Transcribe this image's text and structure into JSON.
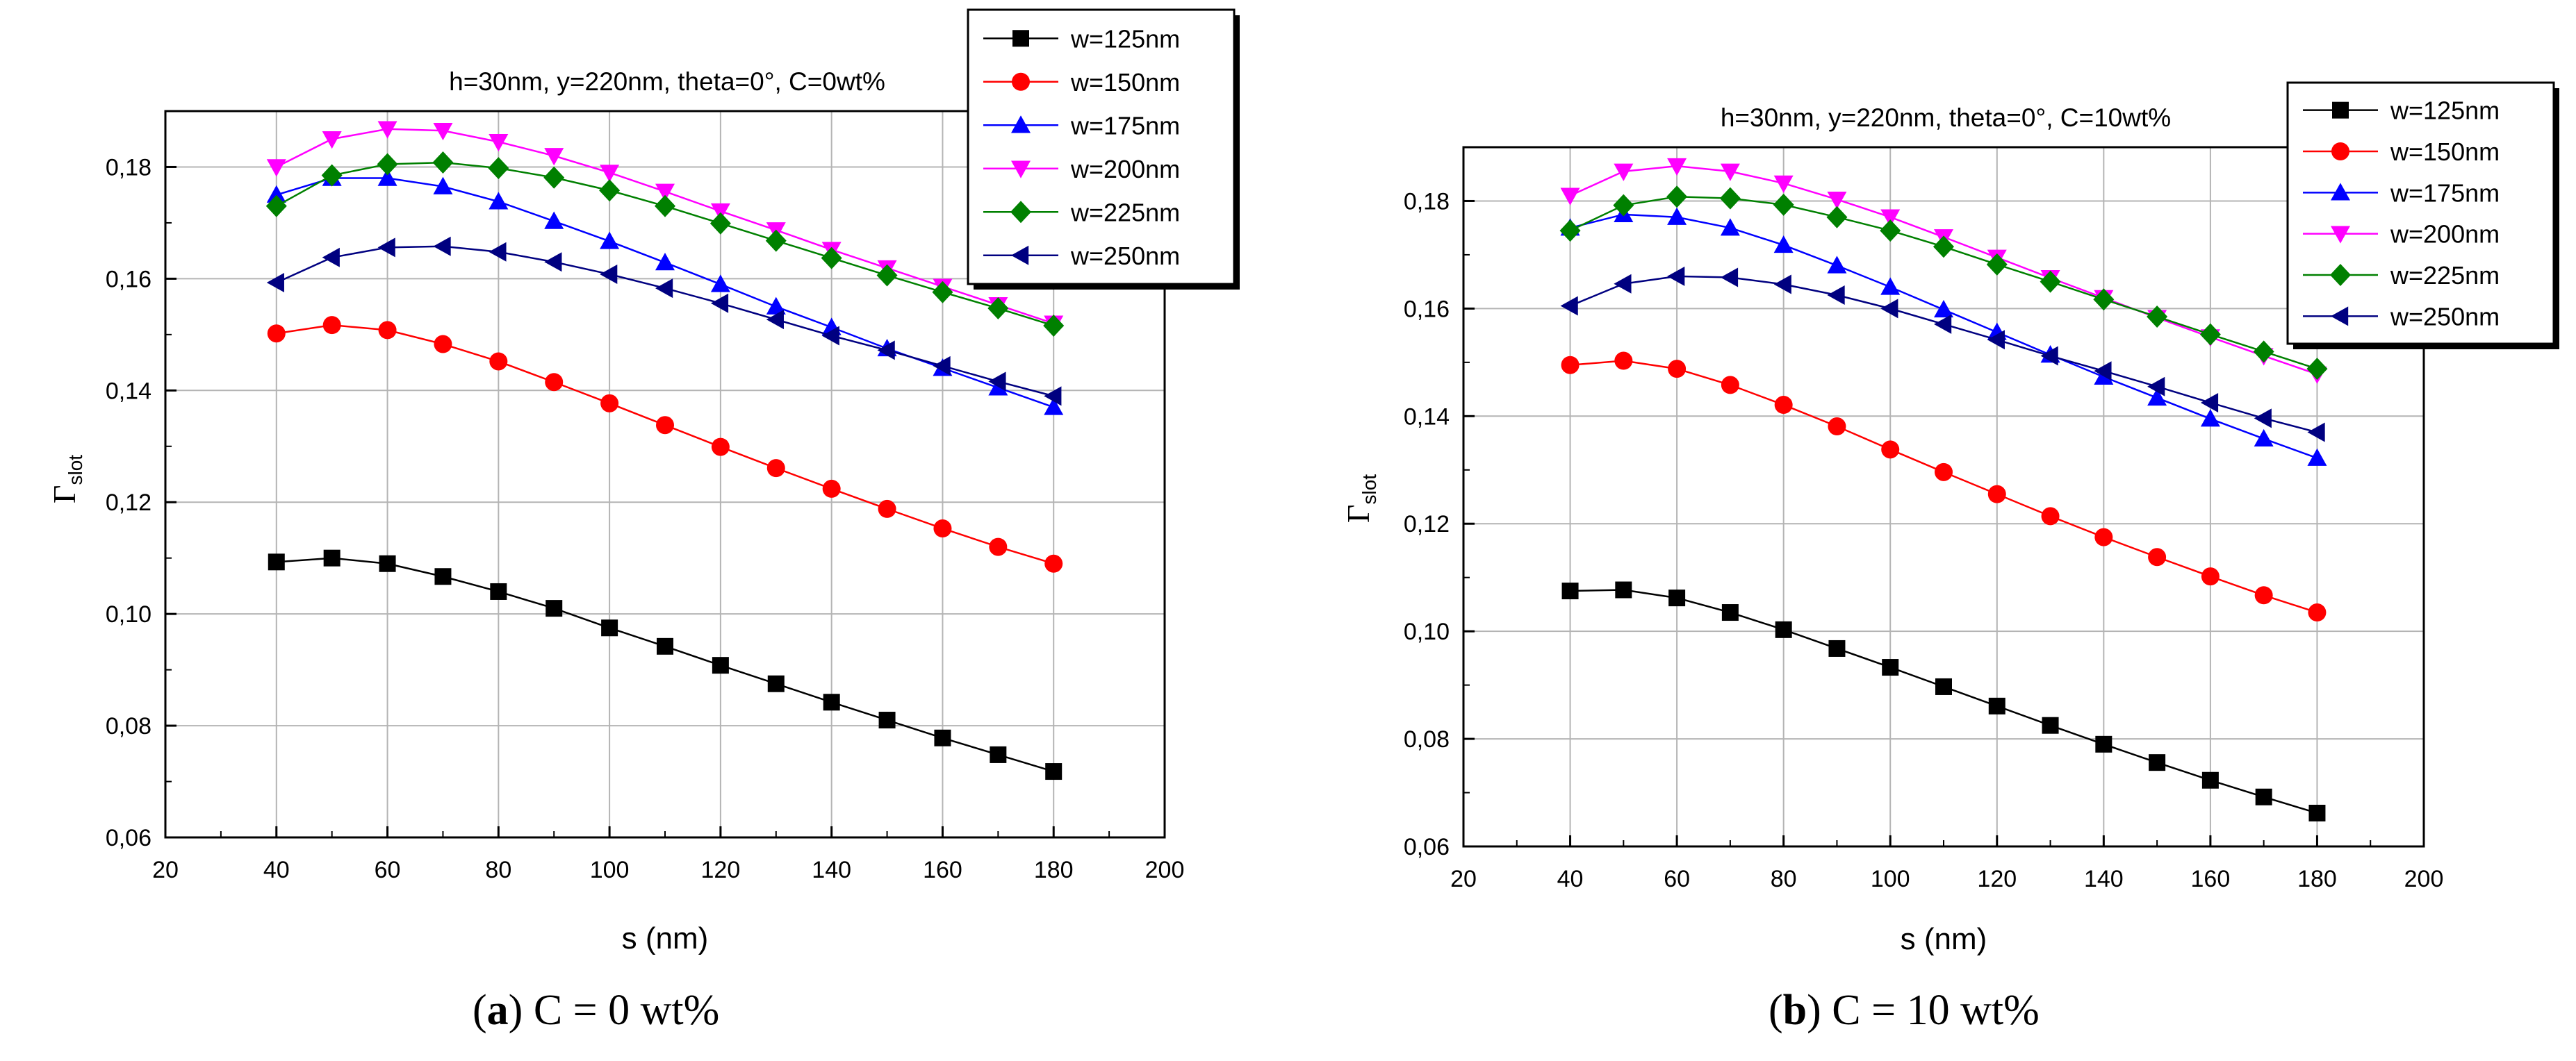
{
  "chart_data": [
    {
      "type": "line",
      "panel": "a",
      "title": "h=30nm, y=220nm, theta=0°, C=0wt%",
      "xlabel": "s (nm)",
      "ylabel": "Γ",
      "ylabel_sub": "slot",
      "xlim": [
        20,
        200
      ],
      "ylim": [
        0.06,
        0.19
      ],
      "xticks": [
        20,
        40,
        60,
        80,
        100,
        120,
        140,
        160,
        180,
        200
      ],
      "xtick_labels": [
        "20",
        "40",
        "60",
        "80",
        "100",
        "120",
        "140",
        "160",
        "180",
        "200"
      ],
      "yticks": [
        0.06,
        0.08,
        0.1,
        0.12,
        0.14,
        0.16,
        0.18
      ],
      "ytick_labels": [
        "0,06",
        "0,08",
        "0,10",
        "0,12",
        "0,14",
        "0,16",
        "0,18"
      ],
      "grid": true,
      "legend_position": "top-right",
      "x": [
        40,
        50,
        60,
        70,
        80,
        90,
        100,
        110,
        120,
        130,
        140,
        150,
        160,
        170,
        180
      ],
      "series": [
        {
          "name": "w=125nm",
          "color": "#000000",
          "marker": "square",
          "values": [
            0.1093,
            0.11,
            0.109,
            0.1067,
            0.104,
            0.101,
            0.0975,
            0.0942,
            0.0908,
            0.0875,
            0.0842,
            0.081,
            0.0778,
            0.0748,
            0.0718
          ]
        },
        {
          "name": "w=150nm",
          "color": "#ff0000",
          "marker": "circle",
          "values": [
            0.1502,
            0.1517,
            0.1508,
            0.1483,
            0.1452,
            0.1415,
            0.1377,
            0.1338,
            0.1299,
            0.1261,
            0.1224,
            0.1188,
            0.1153,
            0.112,
            0.109
          ]
        },
        {
          "name": "w=175nm",
          "color": "#0000ff",
          "marker": "triangle-up",
          "values": [
            0.175,
            0.178,
            0.178,
            0.1765,
            0.1738,
            0.1703,
            0.1667,
            0.1629,
            0.159,
            0.155,
            0.1513,
            0.1475,
            0.144,
            0.1405,
            0.137
          ]
        },
        {
          "name": "w=200nm",
          "color": "#ff00ff",
          "marker": "triangle-down",
          "values": [
            0.18,
            0.185,
            0.1868,
            0.1865,
            0.1845,
            0.182,
            0.179,
            0.1756,
            0.1721,
            0.1687,
            0.1652,
            0.1619,
            0.1586,
            0.1553,
            0.152
          ]
        },
        {
          "name": "w=225nm",
          "color": "#008000",
          "marker": "diamond",
          "values": [
            0.173,
            0.1785,
            0.1805,
            0.1808,
            0.1798,
            0.1781,
            0.1758,
            0.173,
            0.1699,
            0.1668,
            0.1637,
            0.1606,
            0.1576,
            0.1547,
            0.1516
          ]
        },
        {
          "name": "w=250nm",
          "color": "#000080",
          "marker": "triangle-left",
          "values": [
            0.1593,
            0.1638,
            0.1656,
            0.1658,
            0.1648,
            0.163,
            0.1608,
            0.1583,
            0.1556,
            0.1527,
            0.1498,
            0.1472,
            0.1444,
            0.1416,
            0.139
          ]
        }
      ]
    },
    {
      "type": "line",
      "panel": "b",
      "title": "h=30nm, y=220nm, theta=0°, C=10wt%",
      "xlabel": "s (nm)",
      "ylabel": "Γ",
      "ylabel_sub": "slot",
      "xlim": [
        20,
        200
      ],
      "ylim": [
        0.06,
        0.19
      ],
      "xticks": [
        20,
        40,
        60,
        80,
        100,
        120,
        140,
        160,
        180,
        200
      ],
      "xtick_labels": [
        "20",
        "40",
        "60",
        "80",
        "100",
        "120",
        "140",
        "160",
        "180",
        "200"
      ],
      "yticks": [
        0.06,
        0.08,
        0.1,
        0.12,
        0.14,
        0.16,
        0.18
      ],
      "ytick_labels": [
        "0,06",
        "0,08",
        "0,10",
        "0,12",
        "0,14",
        "0,16",
        "0,18"
      ],
      "grid": true,
      "legend_position": "top-right",
      "x": [
        40,
        50,
        60,
        70,
        80,
        90,
        100,
        110,
        120,
        130,
        140,
        150,
        160,
        170,
        180
      ],
      "series": [
        {
          "name": "w=125nm",
          "color": "#000000",
          "marker": "square",
          "values": [
            0.1075,
            0.1077,
            0.1062,
            0.1035,
            0.1003,
            0.0968,
            0.0933,
            0.0897,
            0.0861,
            0.0825,
            0.079,
            0.0756,
            0.0723,
            0.0692,
            0.0662
          ]
        },
        {
          "name": "w=150nm",
          "color": "#ff0000",
          "marker": "circle",
          "values": [
            0.1495,
            0.1503,
            0.1488,
            0.1458,
            0.1421,
            0.1381,
            0.1338,
            0.1296,
            0.1255,
            0.1214,
            0.1175,
            0.1138,
            0.1102,
            0.1067,
            0.1035
          ]
        },
        {
          "name": "w=175nm",
          "color": "#0000ff",
          "marker": "triangle-up",
          "values": [
            0.175,
            0.1775,
            0.177,
            0.175,
            0.1718,
            0.168,
            0.164,
            0.1598,
            0.1556,
            0.1514,
            0.1473,
            0.1434,
            0.1395,
            0.1358,
            0.1322
          ]
        },
        {
          "name": "w=200nm",
          "color": "#ff00ff",
          "marker": "triangle-down",
          "values": [
            0.181,
            0.1855,
            0.1865,
            0.1855,
            0.1833,
            0.1803,
            0.177,
            0.1733,
            0.1695,
            0.1657,
            0.162,
            0.1583,
            0.1547,
            0.1512,
            0.1478
          ]
        },
        {
          "name": "w=225nm",
          "color": "#008000",
          "marker": "diamond",
          "values": [
            0.1745,
            0.1792,
            0.1808,
            0.1805,
            0.1793,
            0.177,
            0.1745,
            0.1715,
            0.1682,
            0.165,
            0.1617,
            0.1585,
            0.1552,
            0.152,
            0.1488
          ]
        },
        {
          "name": "w=250nm",
          "color": "#000080",
          "marker": "triangle-left",
          "values": [
            0.1605,
            0.1646,
            0.166,
            0.1658,
            0.1645,
            0.1625,
            0.16,
            0.1571,
            0.1542,
            0.1512,
            0.1484,
            0.1455,
            0.1425,
            0.1396,
            0.137
          ]
        }
      ]
    }
  ],
  "captions": [
    {
      "label": "a",
      "text": "C = 0 wt%"
    },
    {
      "label": "b",
      "text": "C = 10 wt%"
    }
  ]
}
